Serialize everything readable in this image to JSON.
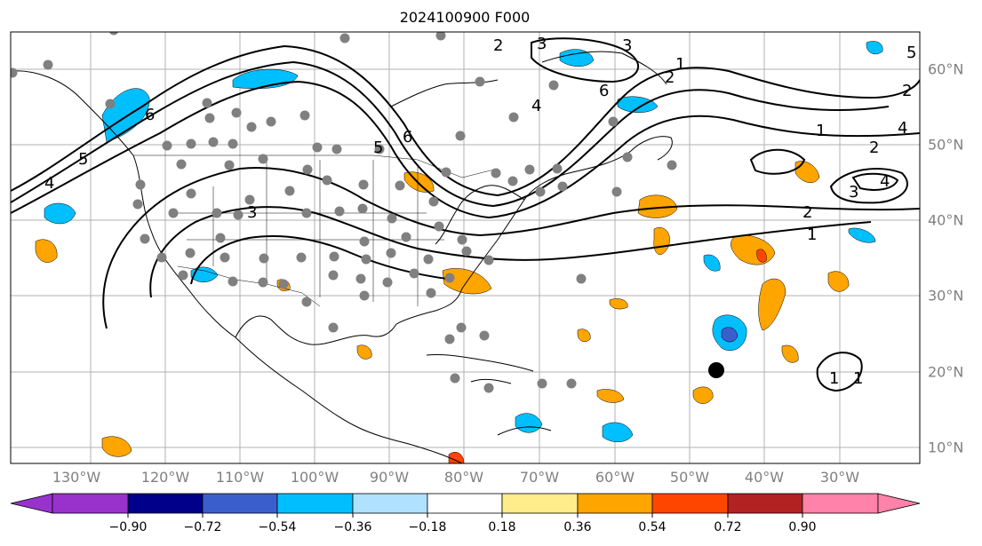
{
  "title": "2024100900 F000",
  "lon_labels": [
    "130°W",
    "120°W",
    "110°W",
    "100°W",
    "90°W",
    "80°W",
    "70°W",
    "60°W",
    "50°W",
    "40°W",
    "30°W"
  ],
  "lat_labels": [
    "60°N",
    "50°N",
    "40°N",
    "30°N",
    "20°N",
    "10°N"
  ],
  "colorbar": {
    "ticks": [
      "−0.90",
      "−0.72",
      "−0.54",
      "−0.36",
      "−0.18",
      "0.18",
      "0.36",
      "0.54",
      "0.72",
      "0.90"
    ],
    "colors": [
      "#9932cc",
      "#00008b",
      "#3a5fcd",
      "#00bfff",
      "#b0e2ff",
      "#ffffff",
      "#ffec8b",
      "#ffa500",
      "#ff4500",
      "#b22222",
      "#ff82ab"
    ]
  },
  "contour_labels": [
    "6",
    "5",
    "4",
    "3",
    "2",
    "1",
    "6",
    "5",
    "4",
    "3",
    "2",
    "1",
    "4",
    "3",
    "2",
    "1",
    "3",
    "2",
    "1",
    "6",
    "5",
    "4",
    "2",
    "1"
  ],
  "colors": {
    "contour": "#000000",
    "grid": "#b0b0b0",
    "station": "#808080",
    "storm_marker": "#000000"
  }
}
